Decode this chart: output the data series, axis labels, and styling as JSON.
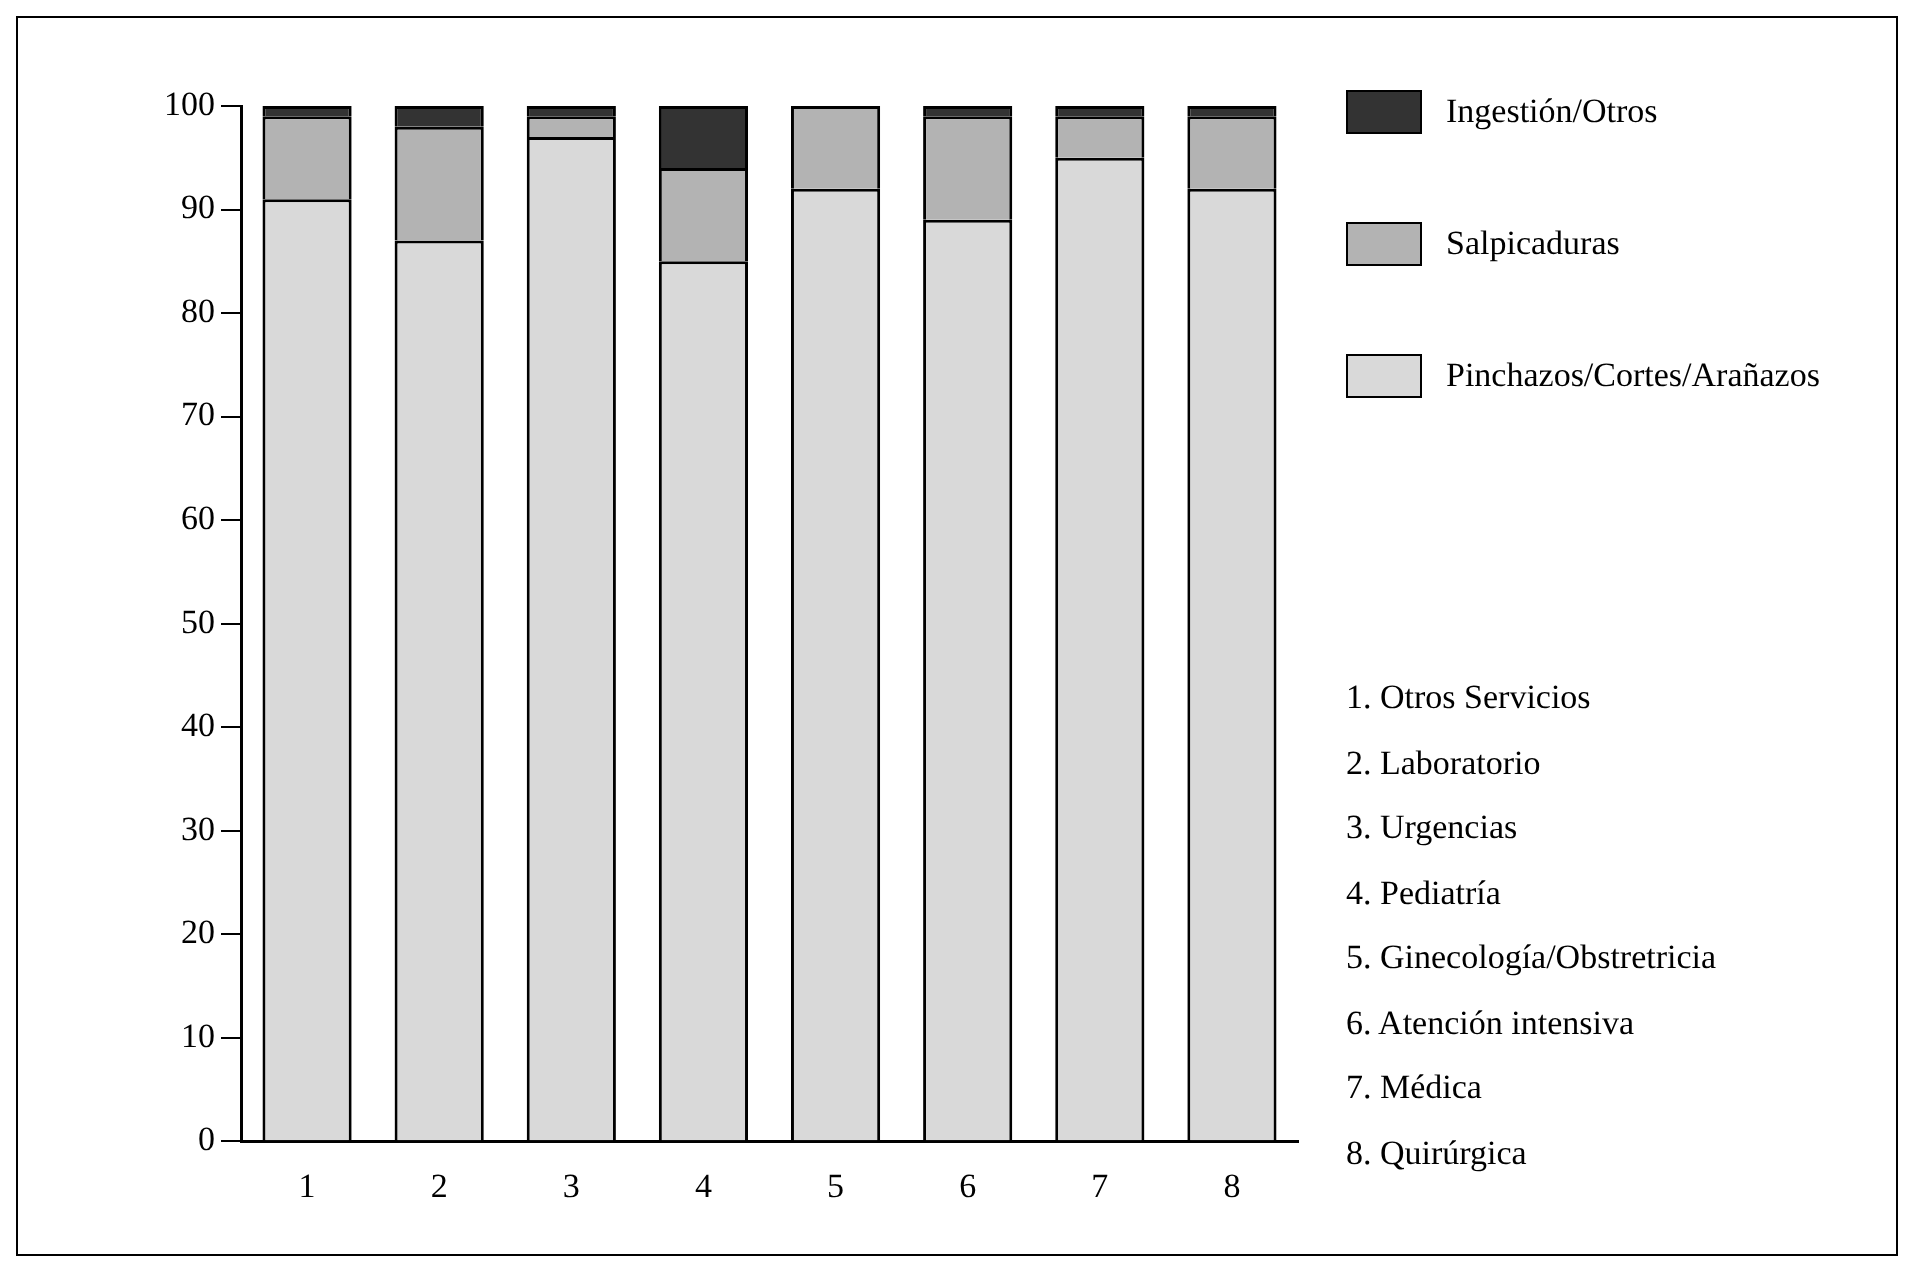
{
  "chart_data": {
    "type": "bar",
    "stacked": true,
    "categories": [
      "1",
      "2",
      "3",
      "4",
      "5",
      "6",
      "7",
      "8"
    ],
    "series": [
      {
        "name": "Pinchazos/Cortes/Arañazos",
        "color": "#d9d9d9",
        "values": [
          91,
          87,
          97,
          85,
          92,
          89,
          95,
          92
        ]
      },
      {
        "name": "Salpicaduras",
        "color": "#b3b3b3",
        "values": [
          8,
          11,
          2,
          9,
          8,
          10,
          4,
          7
        ]
      },
      {
        "name": "Ingestión/Otros",
        "color": "#333333",
        "values": [
          1,
          2,
          1,
          6,
          0,
          1,
          1,
          1
        ]
      }
    ],
    "ylim": [
      0,
      100
    ],
    "yticks": [
      0,
      10,
      20,
      30,
      40,
      50,
      60,
      70,
      80,
      90,
      100
    ],
    "grid": false,
    "legend": "top right",
    "annotations": [
      "1. Otros Servicios",
      "2. Laboratorio",
      "3. Urgencias",
      "4. Pediatría",
      "5. Ginecología/Obstretricia",
      "6. Atención intensiva",
      "7. Médica",
      "8. Quirúrgica"
    ]
  }
}
